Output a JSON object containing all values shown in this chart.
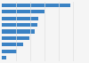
{
  "values": [
    5800,
    3600,
    3100,
    3000,
    2800,
    2350,
    1800,
    1250,
    380
  ],
  "bar_color": "#3a82c4",
  "background_color": "#f5f5f5",
  "plot_bg_color": "#ffffff",
  "xlim": [
    0,
    7200
  ],
  "figsize": [
    1.0,
    0.71
  ],
  "dpi": 100,
  "bar_height": 0.55,
  "grid_color": "#e0e0e0",
  "grid_count": 6
}
